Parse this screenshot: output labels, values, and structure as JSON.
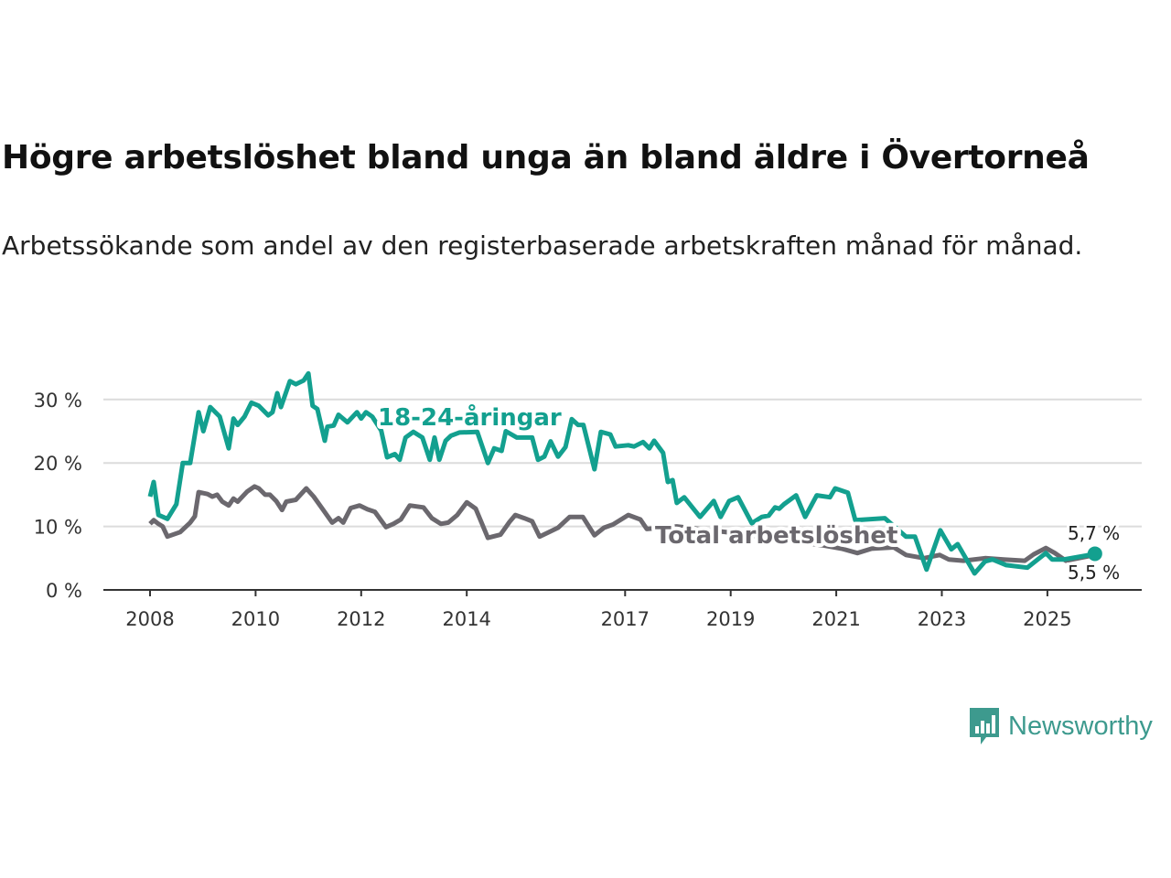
{
  "title": "Högre arbetslöshet bland unga än bland äldre i Övertorneå",
  "subtitle": "Arbetssökande som andel av den registerbaserade arbetskraften månad för månad.",
  "logo": {
    "text": "Newsworthy",
    "icon": "bar-chart-speech-bubble-icon"
  },
  "chart_data": {
    "type": "line",
    "title": "Högre arbetslöshet bland unga än bland äldre i Övertorneå",
    "xlabel": "",
    "ylabel": "",
    "ylim": [
      0,
      35
    ],
    "xlim": [
      2007.2,
      2027.0
    ],
    "yticks": [
      0,
      10,
      20,
      30
    ],
    "ytick_labels": [
      "0 %",
      "10 %",
      "20 %",
      "30 %"
    ],
    "xticks": [
      2008,
      2010,
      2012,
      2014,
      2017,
      2019,
      2021,
      2023,
      2025
    ],
    "xtick_labels": [
      "2008",
      "2010",
      "2012",
      "2014",
      "2017",
      "2019",
      "2021",
      "2023",
      "2025"
    ],
    "grid": true,
    "colors": {
      "youth": "#13a08f",
      "total": "#6b686e"
    },
    "series": [
      {
        "name": "18-24-åringar",
        "key": "youth",
        "end_label": "5,7 %",
        "x": [
          2008.0,
          2008.07,
          2008.16,
          2008.33,
          2008.5,
          2008.62,
          2008.76,
          2008.92,
          2009.01,
          2009.14,
          2009.32,
          2009.49,
          2009.58,
          2009.66,
          2009.79,
          2009.92,
          2010.06,
          2010.24,
          2010.32,
          2010.41,
          2010.48,
          2010.65,
          2010.76,
          2010.91,
          2011.0,
          2011.08,
          2011.17,
          2011.31,
          2011.36,
          2011.48,
          2011.57,
          2011.74,
          2011.92,
          2012.0,
          2012.09,
          2012.21,
          2012.38,
          2012.49,
          2012.64,
          2012.73,
          2012.84,
          2012.99,
          2013.16,
          2013.3,
          2013.39,
          2013.48,
          2013.6,
          2013.7,
          2013.86,
          2014.2,
          2014.4,
          2014.52,
          2014.66,
          2014.74,
          2014.95,
          2015.24,
          2015.35,
          2015.47,
          2015.59,
          2015.73,
          2015.87,
          2015.99,
          2016.11,
          2016.21,
          2016.42,
          2016.54,
          2016.72,
          2016.82,
          2017.06,
          2017.17,
          2017.34,
          2017.46,
          2017.55,
          2017.72,
          2017.81,
          2017.9,
          2017.98,
          2018.12,
          2018.42,
          2018.68,
          2018.81,
          2018.97,
          2019.14,
          2019.4,
          2019.59,
          2019.72,
          2019.84,
          2019.92,
          2020.01,
          2020.24,
          2020.41,
          2020.63,
          2020.88,
          2020.98,
          2021.22,
          2021.36,
          2021.92,
          2022.32,
          2022.49,
          2022.71,
          2022.97,
          2023.18,
          2023.3,
          2023.62,
          2023.82,
          2023.96,
          2024.22,
          2024.62,
          2024.97,
          2025.09,
          2025.31,
          2025.73,
          2025.9
        ],
        "y": [
          14.7,
          17,
          11.8,
          11.2,
          13.5,
          20,
          20,
          28,
          25,
          28.8,
          27.3,
          22.3,
          27,
          26,
          27.3,
          29.5,
          29,
          27.5,
          28,
          31,
          28.8,
          32.9,
          32.4,
          33,
          34.1,
          29,
          28.5,
          23.5,
          25.7,
          25.9,
          27.6,
          26.4,
          28,
          27,
          28,
          27.3,
          25.1,
          20.9,
          21.4,
          20.5,
          24,
          24.9,
          24,
          20.5,
          24,
          20.5,
          23.5,
          24.3,
          24.8,
          24.9,
          20,
          22.3,
          21.9,
          25,
          24,
          24,
          20.5,
          21,
          23.4,
          21,
          22.5,
          26.9,
          26,
          26,
          19,
          24.9,
          24.5,
          22.6,
          22.8,
          22.6,
          23.3,
          22.3,
          23.5,
          21.6,
          17,
          17.3,
          13.7,
          14.6,
          11.5,
          14,
          11.5,
          14,
          14.6,
          10.5,
          11.5,
          11.7,
          13,
          12.8,
          13.5,
          14.9,
          11.5,
          14.9,
          14.6,
          16,
          15.3,
          11,
          11.3,
          8.4,
          8.4,
          3.2,
          9.4,
          6.4,
          7.2,
          2.6,
          4.5,
          4.8,
          3.9,
          3.5,
          5.8,
          4.8,
          4.8,
          5.4,
          5.7
        ]
      },
      {
        "name": "Total arbetslöshet",
        "key": "total",
        "end_label": "5,5 %",
        "x": [
          2008.0,
          2008.07,
          2008.16,
          2008.24,
          2008.33,
          2008.57,
          2008.76,
          2008.85,
          2008.92,
          2009.09,
          2009.18,
          2009.27,
          2009.37,
          2009.49,
          2009.58,
          2009.66,
          2009.84,
          2009.98,
          2010.06,
          2010.18,
          2010.27,
          2010.39,
          2010.5,
          2010.58,
          2010.76,
          2010.96,
          2011.1,
          2011.28,
          2011.45,
          2011.57,
          2011.66,
          2011.8,
          2011.97,
          2012.12,
          2012.26,
          2012.47,
          2012.61,
          2012.75,
          2012.92,
          2013.18,
          2013.34,
          2013.51,
          2013.65,
          2013.82,
          2014.0,
          2014.17,
          2014.4,
          2014.64,
          2014.81,
          2014.92,
          2015.09,
          2015.24,
          2015.38,
          2015.56,
          2015.73,
          2015.95,
          2016.2,
          2016.42,
          2016.6,
          2016.77,
          2017.06,
          2017.29,
          2017.41,
          2017.98,
          2019.02,
          2019.89,
          2020.76,
          2021.1,
          2021.4,
          2021.67,
          2022.09,
          2022.32,
          2022.66,
          2022.96,
          2023.13,
          2023.41,
          2023.82,
          2024.17,
          2024.57,
          2024.74,
          2024.97,
          2025.14,
          2025.35,
          2025.9
        ],
        "y": [
          10.4,
          11,
          10.4,
          10,
          8.4,
          9.1,
          10.6,
          11.6,
          15.4,
          15.1,
          14.7,
          15,
          13.9,
          13.3,
          14.4,
          13.9,
          15.5,
          16.3,
          16,
          15,
          15,
          14,
          12.6,
          13.9,
          14.2,
          16,
          14.7,
          12.6,
          10.6,
          11.3,
          10.6,
          12.9,
          13.3,
          12.7,
          12.3,
          9.9,
          10.4,
          11.1,
          13.3,
          13,
          11.3,
          10.4,
          10.6,
          11.8,
          13.8,
          12.8,
          8.2,
          8.7,
          10.7,
          11.8,
          11.3,
          10.8,
          8.4,
          9.1,
          9.8,
          11.5,
          11.5,
          8.6,
          9.8,
          10.3,
          11.8,
          11.1,
          9.6,
          10,
          9,
          8,
          7,
          6.5,
          5.8,
          6.5,
          6.7,
          5.5,
          5,
          5.5,
          4.8,
          4.6,
          5,
          4.8,
          4.6,
          5.6,
          6.6,
          5.8,
          4.6,
          5.5
        ]
      }
    ]
  }
}
